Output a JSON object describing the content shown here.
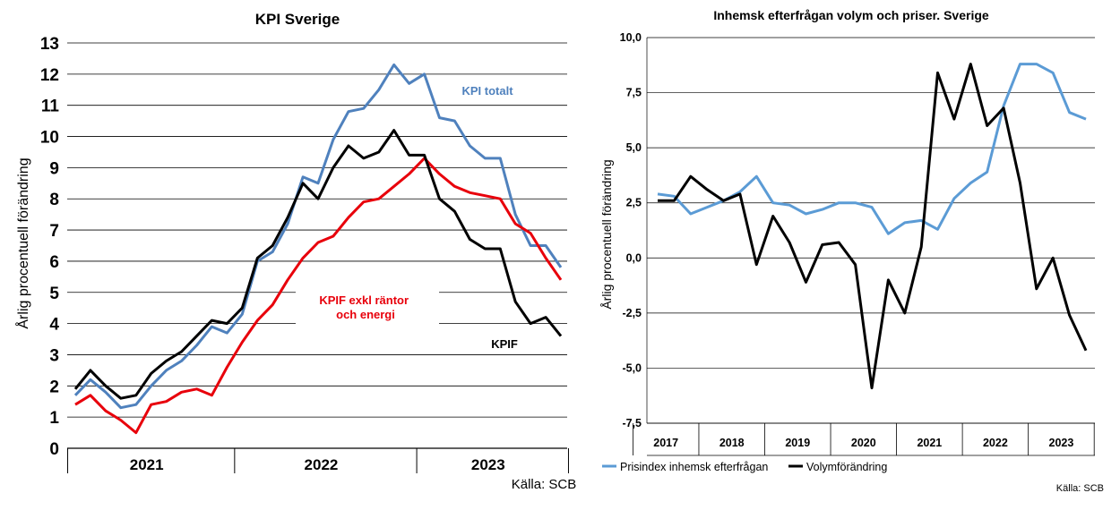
{
  "chart_data": [
    {
      "type": "line",
      "title": "KPI Sverige",
      "ylabel": "Årlig procentuell förändring",
      "xlabel": "",
      "ylim": [
        0,
        13
      ],
      "yticks": [
        "0",
        "1",
        "2",
        "3",
        "4",
        "5",
        "6",
        "7",
        "8",
        "9",
        "10",
        "11",
        "12",
        "13"
      ],
      "year_labels": [
        "2021",
        "2022",
        "2023"
      ],
      "grid": true,
      "source": "Källa: SCB",
      "series": [
        {
          "name": "KPI totalt",
          "color": "#4f81bd",
          "values": [
            1.7,
            2.2,
            1.8,
            1.3,
            1.4,
            2.0,
            2.5,
            2.8,
            3.3,
            3.9,
            3.7,
            4.3,
            6.0,
            6.3,
            7.2,
            8.7,
            8.5,
            9.9,
            10.8,
            10.9,
            11.5,
            12.3,
            11.7,
            12.0,
            10.6,
            10.5,
            9.7,
            9.3,
            9.3,
            7.5,
            6.5,
            6.5,
            5.8
          ]
        },
        {
          "name": "KPIF exkl räntor och energi",
          "color": "#e8000b",
          "values": [
            1.4,
            1.7,
            1.2,
            0.9,
            0.5,
            1.4,
            1.5,
            1.8,
            1.9,
            1.7,
            2.6,
            3.4,
            4.1,
            4.6,
            5.4,
            6.1,
            6.6,
            6.8,
            7.4,
            7.9,
            8.0,
            8.4,
            8.8,
            9.3,
            8.8,
            8.4,
            8.2,
            8.1,
            8.0,
            7.2,
            6.9,
            6.1,
            5.4
          ]
        },
        {
          "name": "KPIF",
          "color": "#000000",
          "values": [
            1.9,
            2.5,
            2.0,
            1.6,
            1.7,
            2.4,
            2.8,
            3.1,
            3.6,
            4.1,
            4.0,
            4.5,
            6.1,
            6.5,
            7.4,
            8.5,
            8.0,
            9.0,
            9.7,
            9.3,
            9.5,
            10.2,
            9.4,
            9.4,
            8.0,
            7.6,
            6.7,
            6.4,
            6.4,
            4.7,
            4.0,
            4.2,
            3.6
          ]
        }
      ]
    },
    {
      "type": "line",
      "title": "Inhemsk efterfrågan volym och priser. Sverige",
      "ylabel": "Årlig procentuell förändring",
      "xlabel": "",
      "ylim": [
        -7.5,
        10.0
      ],
      "yticks": [
        "-7,5",
        "-5,0",
        "-2,5",
        "0,0",
        "2,5",
        "5,0",
        "7,5",
        "10,0"
      ],
      "year_labels": [
        "2017",
        "2018",
        "2019",
        "2020",
        "2021",
        "2022",
        "2023"
      ],
      "grid": true,
      "legend_position": "bottom",
      "source": "Källa: SCB",
      "series": [
        {
          "name": "Prisindex inhemsk efterfrågan",
          "color": "#5b9bd5",
          "values": [
            2.9,
            2.8,
            2.0,
            2.3,
            2.6,
            3.0,
            3.7,
            2.5,
            2.4,
            2.0,
            2.2,
            2.5,
            2.5,
            2.3,
            1.1,
            1.6,
            1.7,
            1.3,
            2.7,
            3.4,
            3.9,
            6.9,
            8.8,
            8.8,
            8.4,
            6.6,
            6.3
          ]
        },
        {
          "name": "Volymförändring",
          "color": "#000000",
          "values": [
            2.6,
            2.6,
            3.7,
            3.1,
            2.6,
            2.9,
            -0.3,
            1.9,
            0.7,
            -1.1,
            0.6,
            0.7,
            -0.3,
            -5.9,
            -1.0,
            -2.5,
            0.5,
            8.4,
            6.3,
            8.8,
            6.0,
            6.8,
            3.4,
            -1.4,
            0.0,
            -2.6,
            -4.2
          ]
        }
      ]
    }
  ]
}
